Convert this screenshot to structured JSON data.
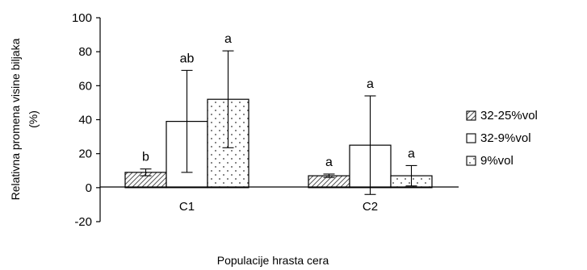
{
  "chart_data": {
    "type": "bar",
    "title": "",
    "xlabel": "Populacije hrasta cera",
    "ylabel_lines": [
      "Relativna promena visine biljaka",
      "(%)"
    ],
    "ylim": [
      -20,
      100
    ],
    "yticks": [
      -20,
      0,
      20,
      40,
      60,
      80,
      100
    ],
    "categories": [
      "C1",
      "C2"
    ],
    "error_bars": true,
    "legend_position": "right",
    "series": [
      {
        "name": "32-25%vol",
        "pattern": "diagonal-hatch",
        "values": [
          9,
          7
        ],
        "error": [
          2,
          1
        ],
        "labels": [
          "b",
          "a"
        ]
      },
      {
        "name": "32-9%vol",
        "pattern": "none",
        "values": [
          39,
          25
        ],
        "error": [
          30,
          29
        ],
        "labels": [
          "ab",
          "a"
        ]
      },
      {
        "name": "9%vol",
        "pattern": "dots",
        "values": [
          52,
          7
        ],
        "error": [
          28.5,
          6
        ],
        "labels": [
          "a",
          "a"
        ]
      }
    ]
  }
}
